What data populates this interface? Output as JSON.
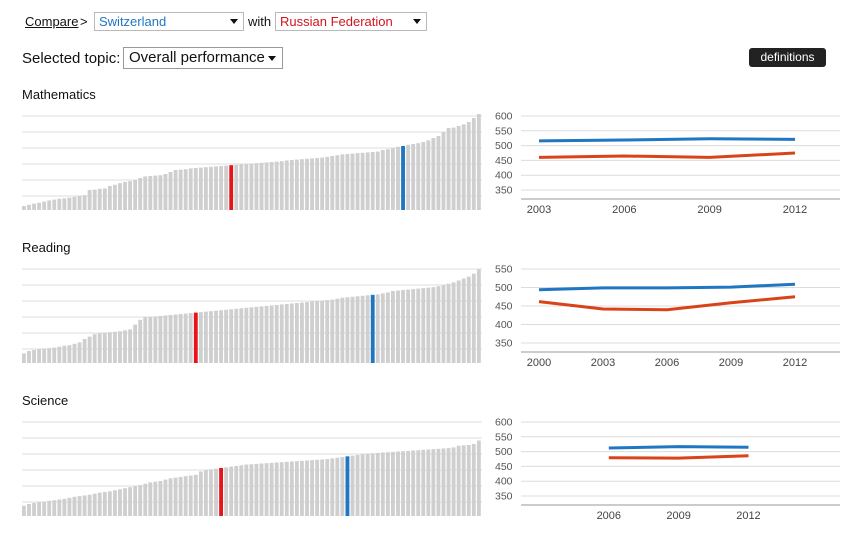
{
  "header": {
    "compare_label": "Compare",
    "separator": ">",
    "country_a": "Switzerland",
    "with_label": "with",
    "country_b": "Russian Federation",
    "topic_label": "Selected topic:",
    "topic_value": "Overall performance",
    "definitions_label": "definitions"
  },
  "colors": {
    "country_a": "#1f77c2",
    "country_b": "#e8141b",
    "line_b": "#d9431a",
    "bars": "#cfcfcf"
  },
  "sections": [
    {
      "title": "Mathematics",
      "ranking": {
        "values": [
          370,
          373,
          376,
          378,
          381,
          384,
          386,
          388,
          389,
          391,
          393,
          395,
          397,
          410,
          411,
          413,
          414,
          420,
          423,
          427,
          430,
          432,
          435,
          440,
          444,
          445,
          446,
          447,
          450,
          455,
          460,
          461,
          462,
          464,
          465,
          466,
          467,
          468,
          469,
          470,
          471,
          472,
          473,
          474,
          475,
          476,
          477,
          478,
          479,
          480,
          481,
          482,
          484,
          485,
          486,
          487,
          488,
          489,
          490,
          491,
          493,
          495,
          497,
          499,
          500,
          501,
          502,
          503,
          504,
          505,
          506,
          510,
          512,
          514,
          518,
          520,
          523,
          525,
          527,
          530,
          534,
          540,
          545,
          555,
          565,
          566,
          570,
          574,
          580,
          590,
          600
        ],
        "highlight_a": 75,
        "highlight_b": 41,
        "ymin": 360,
        "ymax": 600
      },
      "trend": {
        "years": [
          2003,
          2006,
          2009,
          2012
        ],
        "a": [
          516,
          519,
          523,
          521
        ],
        "b": [
          460,
          465,
          460,
          475
        ],
        "yticks": [
          600,
          550,
          500,
          450,
          400,
          350
        ],
        "ymin": 350,
        "ymax": 600,
        "xmin": 2003,
        "xmax": 2012
      }
    },
    {
      "title": "Reading",
      "ranking": {
        "values": [
          370,
          375,
          377,
          379,
          380,
          381,
          382,
          384,
          386,
          387,
          390,
          393,
          400,
          405,
          410,
          412,
          413,
          414,
          415,
          416,
          418,
          420,
          430,
          440,
          445,
          446,
          447,
          448,
          449,
          450,
          451,
          452,
          453,
          454,
          455,
          456,
          457,
          458,
          459,
          460,
          461,
          462,
          463,
          464,
          465,
          466,
          467,
          468,
          469,
          470,
          471,
          472,
          473,
          474,
          475,
          476,
          477,
          478,
          479,
          480,
          481,
          482,
          484,
          486,
          487,
          488,
          489,
          490,
          491,
          492,
          493,
          495,
          497,
          500,
          501,
          502,
          503,
          504,
          505,
          506,
          507,
          508,
          510,
          512,
          515,
          518,
          522,
          526,
          530,
          536,
          545
        ],
        "highlight_a": 69,
        "highlight_b": 34,
        "ymin": 350,
        "ymax": 550
      },
      "trend": {
        "years": [
          2000,
          2003,
          2006,
          2009,
          2012
        ],
        "a": [
          494,
          499,
          499,
          501,
          509
        ],
        "b": [
          462,
          442,
          440,
          459,
          475
        ],
        "yticks": [
          550,
          500,
          450,
          400,
          350
        ],
        "ymin": 350,
        "ymax": 550,
        "xmin": 2000,
        "xmax": 2012
      }
    },
    {
      "title": "Science",
      "ranking": {
        "values": [
          370,
          375,
          378,
          380,
          382,
          384,
          386,
          388,
          390,
          393,
          396,
          398,
          400,
          402,
          405,
          408,
          410,
          412,
          415,
          418,
          421,
          424,
          427,
          430,
          434,
          438,
          440,
          442,
          446,
          450,
          452,
          454,
          456,
          458,
          460,
          470,
          474,
          476,
          478,
          480,
          482,
          484,
          486,
          488,
          490,
          491,
          492,
          493,
          494,
          495,
          496,
          497,
          498,
          499,
          500,
          501,
          502,
          503,
          504,
          505,
          506,
          508,
          510,
          512,
          514,
          516,
          518,
          520,
          522,
          523,
          524,
          525,
          526,
          527,
          528,
          529,
          530,
          531,
          532,
          533,
          534,
          535,
          536,
          537,
          538,
          540,
          545,
          546,
          547,
          550,
          560
        ],
        "highlight_a": 64,
        "highlight_b": 39,
        "ymin": 340,
        "ymax": 620
      },
      "trend": {
        "years": [
          2006,
          2009,
          2012
        ],
        "a": [
          512,
          517,
          515
        ],
        "b": [
          479,
          478,
          486
        ],
        "yticks": [
          600,
          550,
          500,
          450,
          400,
          350
        ],
        "ymin": 350,
        "ymax": 600,
        "xmin": 2003,
        "xmax": 2014
      }
    }
  ],
  "chart_data": [
    {
      "type": "line",
      "title": "Mathematics",
      "x": [
        2003,
        2006,
        2009,
        2012
      ],
      "series": [
        {
          "name": "Switzerland",
          "values": [
            516,
            519,
            523,
            521
          ]
        },
        {
          "name": "Russian Federation",
          "values": [
            460,
            465,
            460,
            475
          ]
        }
      ],
      "ylim": [
        350,
        600
      ]
    },
    {
      "type": "line",
      "title": "Reading",
      "x": [
        2000,
        2003,
        2006,
        2009,
        2012
      ],
      "series": [
        {
          "name": "Switzerland",
          "values": [
            494,
            499,
            499,
            501,
            509
          ]
        },
        {
          "name": "Russian Federation",
          "values": [
            462,
            442,
            440,
            459,
            475
          ]
        }
      ],
      "ylim": [
        350,
        550
      ]
    },
    {
      "type": "line",
      "title": "Science",
      "x": [
        2006,
        2009,
        2012
      ],
      "series": [
        {
          "name": "Switzerland",
          "values": [
            512,
            517,
            515
          ]
        },
        {
          "name": "Russian Federation",
          "values": [
            479,
            478,
            486
          ]
        }
      ],
      "ylim": [
        350,
        600
      ]
    }
  ]
}
